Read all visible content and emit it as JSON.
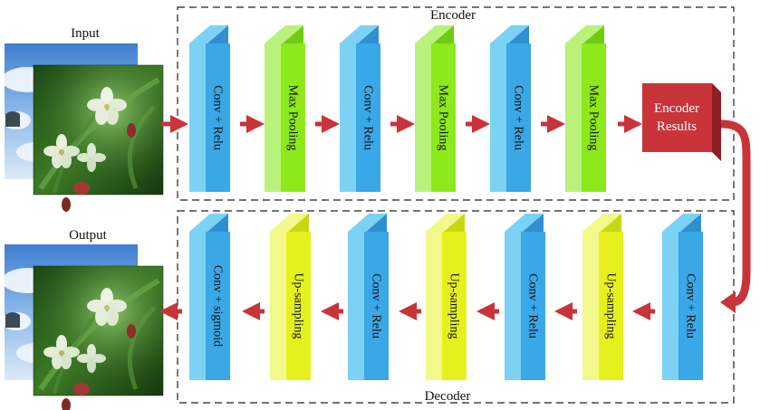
{
  "input_label": "Input",
  "output_label": "Output",
  "encoder": {
    "title": "Encoder",
    "layers": [
      "Conv + Relu",
      "Max Pooling",
      "Conv + Relu",
      "Max Pooling",
      "Conv + Relu",
      "Max Pooling"
    ]
  },
  "encoder_results": {
    "line1": "Encoder",
    "line2": "Results"
  },
  "decoder": {
    "title": "Decoder",
    "layers": [
      "Conv + sigmoid",
      "Up-sampling",
      "Conv + Relu",
      "Up-sampling",
      "Conv + Relu",
      "Up-sampling",
      "Conv + Relu"
    ]
  },
  "colors": {
    "conv_front": "#3aa7e6",
    "conv_side": "#2f8fd0",
    "conv_top": "#7cd2f5",
    "pool_front": "#8de81c",
    "pool_side": "#6fcc12",
    "pool_top": "#b8f27a",
    "up_front": "#e6f01c",
    "up_side": "#c9d612",
    "up_top": "#f3f88a",
    "arrow": "#c8343a",
    "results_front": "#c8343a",
    "results_side": "#8f1f24",
    "results_top": "#e2656a"
  }
}
